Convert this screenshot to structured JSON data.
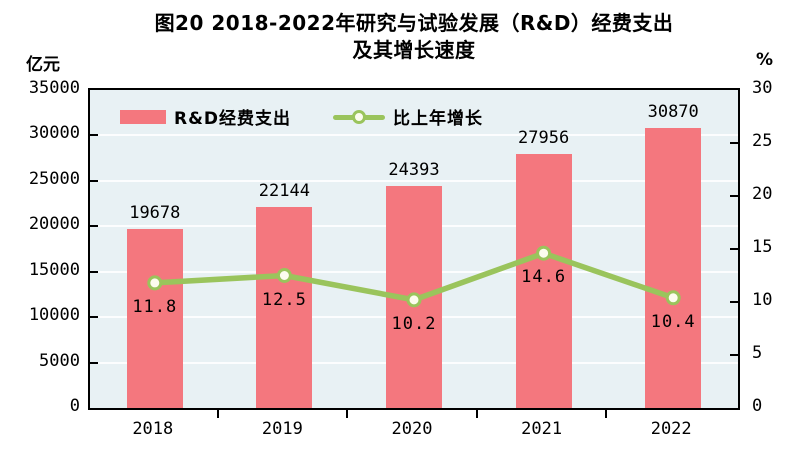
{
  "title": {
    "line1": "图20  2018-2022年研究与试验发展（R&D）经费支出",
    "line2": "及其增长速度"
  },
  "left_axis_unit": "亿元",
  "right_axis_unit": "%",
  "legend": {
    "bar_label": "R&D经费支出",
    "line_label": "比上年增长"
  },
  "chart_data": {
    "type": "bar+line",
    "title": "图20 2018-2022年研究与试验发展（R&D）经费支出及其增长速度",
    "categories": [
      "2018",
      "2019",
      "2020",
      "2021",
      "2022"
    ],
    "series": [
      {
        "name": "R&D经费支出",
        "type": "bar",
        "axis": "left",
        "unit": "亿元",
        "values": [
          19678,
          22144,
          24393,
          27956,
          30870
        ]
      },
      {
        "name": "比上年增长",
        "type": "line",
        "axis": "right",
        "unit": "%",
        "values": [
          11.8,
          12.5,
          10.2,
          14.6,
          10.4
        ]
      }
    ],
    "left_axis": {
      "unit": "亿元",
      "min": 0,
      "max": 35000,
      "step": 5000,
      "ticks": [
        0,
        5000,
        10000,
        15000,
        20000,
        25000,
        30000,
        35000
      ]
    },
    "right_axis": {
      "unit": "%",
      "min": 0,
      "max": 30,
      "step": 5,
      "ticks": [
        0,
        5,
        10,
        15,
        20,
        25,
        30
      ]
    },
    "grid": "on",
    "legend_position": "top-left-inside",
    "colors": {
      "bar": "#f4777e",
      "line": "#9ac45c",
      "marker_fill": "#fcfcee",
      "plot_bg": "#e8f1f4",
      "gridline": "#ffffff",
      "frame": "#000000",
      "text": "#000000"
    }
  }
}
